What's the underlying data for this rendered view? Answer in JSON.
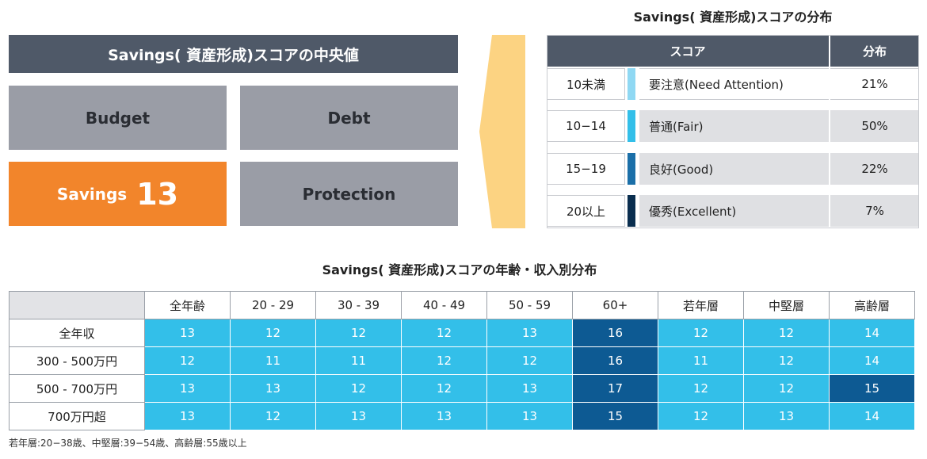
{
  "median_panel": {
    "title": "Savings( 資産形成)スコアの中央値",
    "tiles": [
      {
        "label": "Budget",
        "value": ""
      },
      {
        "label": "Debt",
        "value": ""
      },
      {
        "label": "Savings",
        "value": "13"
      },
      {
        "label": "Protection",
        "value": ""
      }
    ],
    "active_color": "#f2852b",
    "inactive_color": "#9a9da6"
  },
  "distribution": {
    "title": "Savings( 資産形成)スコアの分布",
    "header_score": "スコア",
    "header_share": "分布",
    "rows": [
      {
        "range": "10未満",
        "label": "要注意(Need Attention)",
        "share": "21%",
        "color": "#8fd8f3"
      },
      {
        "range": "10−14",
        "label": "普通(Fair)",
        "share": "50%",
        "color": "#33bfe9"
      },
      {
        "range": "15−19",
        "label": "良好(Good)",
        "share": "22%",
        "color": "#1b6fa8"
      },
      {
        "range": "20以上",
        "label": "優秀(Excellent)",
        "share": "7%",
        "color": "#0a2e4f"
      }
    ]
  },
  "age_income": {
    "title": "Savings( 資産形成)スコアの年齢・収入別分布",
    "columns": [
      "全年齢",
      "20 - 29",
      "30 - 39",
      "40 - 49",
      "50 - 59",
      "60+",
      "若年層",
      "中堅層",
      "高齢層"
    ],
    "rows": [
      {
        "label": "全年収",
        "values": [
          "13",
          "12",
          "12",
          "12",
          "13",
          "16",
          "12",
          "12",
          "14"
        ],
        "dark": [
          false,
          false,
          false,
          false,
          false,
          true,
          false,
          false,
          false
        ]
      },
      {
        "label": "300 - 500万円",
        "values": [
          "12",
          "11",
          "11",
          "12",
          "12",
          "16",
          "11",
          "12",
          "14"
        ],
        "dark": [
          false,
          false,
          false,
          false,
          false,
          true,
          false,
          false,
          false
        ]
      },
      {
        "label": "500 - 700万円",
        "values": [
          "13",
          "13",
          "12",
          "12",
          "13",
          "17",
          "12",
          "12",
          "15"
        ],
        "dark": [
          false,
          false,
          false,
          false,
          false,
          true,
          false,
          false,
          true
        ]
      },
      {
        "label": "700万円超",
        "values": [
          "13",
          "12",
          "13",
          "13",
          "13",
          "15",
          "12",
          "13",
          "14"
        ],
        "dark": [
          false,
          false,
          false,
          false,
          false,
          true,
          false,
          false,
          false
        ]
      }
    ],
    "footnote": "若年層:20−38歳、中堅層:39−54歳、高齢層:55歳以上"
  }
}
